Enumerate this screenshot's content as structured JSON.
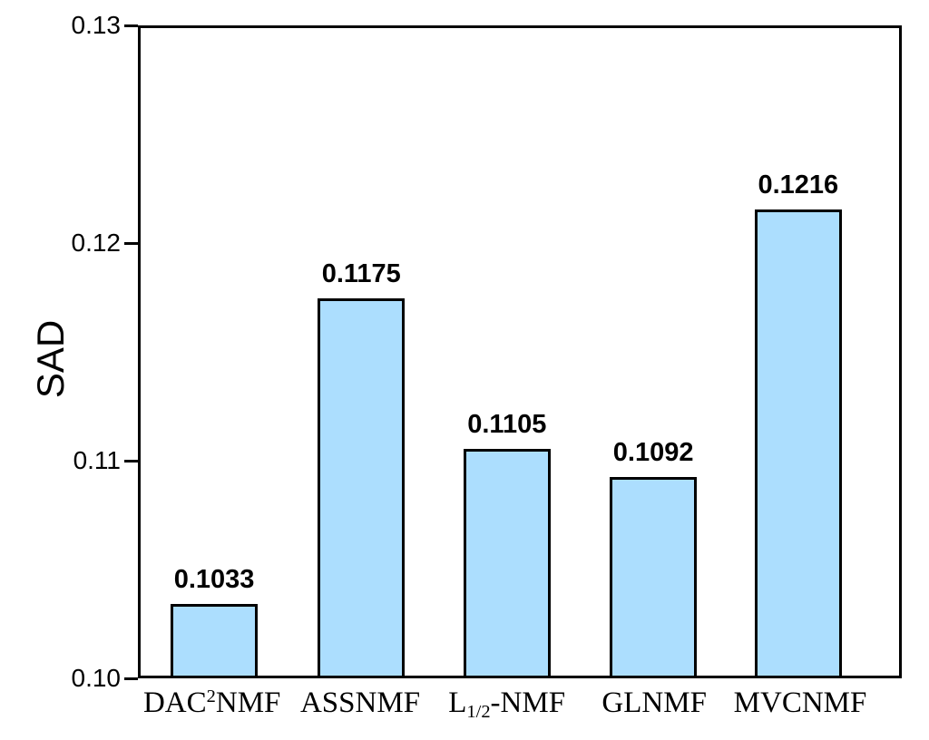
{
  "chart_data": {
    "type": "bar",
    "ylabel": "SAD",
    "ylim": [
      0.1,
      0.13
    ],
    "yticks": [
      {
        "value": 0.13,
        "label": "0.13"
      },
      {
        "value": 0.12,
        "label": "0.12"
      },
      {
        "value": 0.11,
        "label": "0.11"
      },
      {
        "value": 0.1,
        "label": "0.10"
      }
    ],
    "categories": [
      "DAC2NMF",
      "ASSNMF",
      "L1/2-NMF",
      "GLNMF",
      "MVCNMF"
    ],
    "category_rich_labels": [
      [
        {
          "t": "DAC"
        },
        {
          "t": "2",
          "script": "sup"
        },
        {
          "t": "NMF"
        }
      ],
      [
        {
          "t": "ASSNMF"
        }
      ],
      [
        {
          "t": "L"
        },
        {
          "t": "1/2",
          "script": "sub"
        },
        {
          "t": "-NMF"
        }
      ],
      [
        {
          "t": "GLNMF"
        }
      ],
      [
        {
          "t": "MVCNMF"
        }
      ]
    ],
    "values": [
      0.1033,
      0.1175,
      0.1105,
      0.1092,
      0.1216
    ],
    "value_labels": [
      "0.1033",
      "0.1175",
      "0.1105",
      "0.1092",
      "0.1216"
    ],
    "bar_color": "#ACDEFE",
    "bar_border_color": "#000000",
    "axis_color": "#000000",
    "layout": {
      "grid": false,
      "legend": "none",
      "box_frame": true,
      "ticks_side": "left-outside",
      "bar_centers_pct": [
        9.7,
        29.1,
        48.3,
        67.6,
        86.7
      ],
      "bar_width_pct": 11.5
    }
  }
}
